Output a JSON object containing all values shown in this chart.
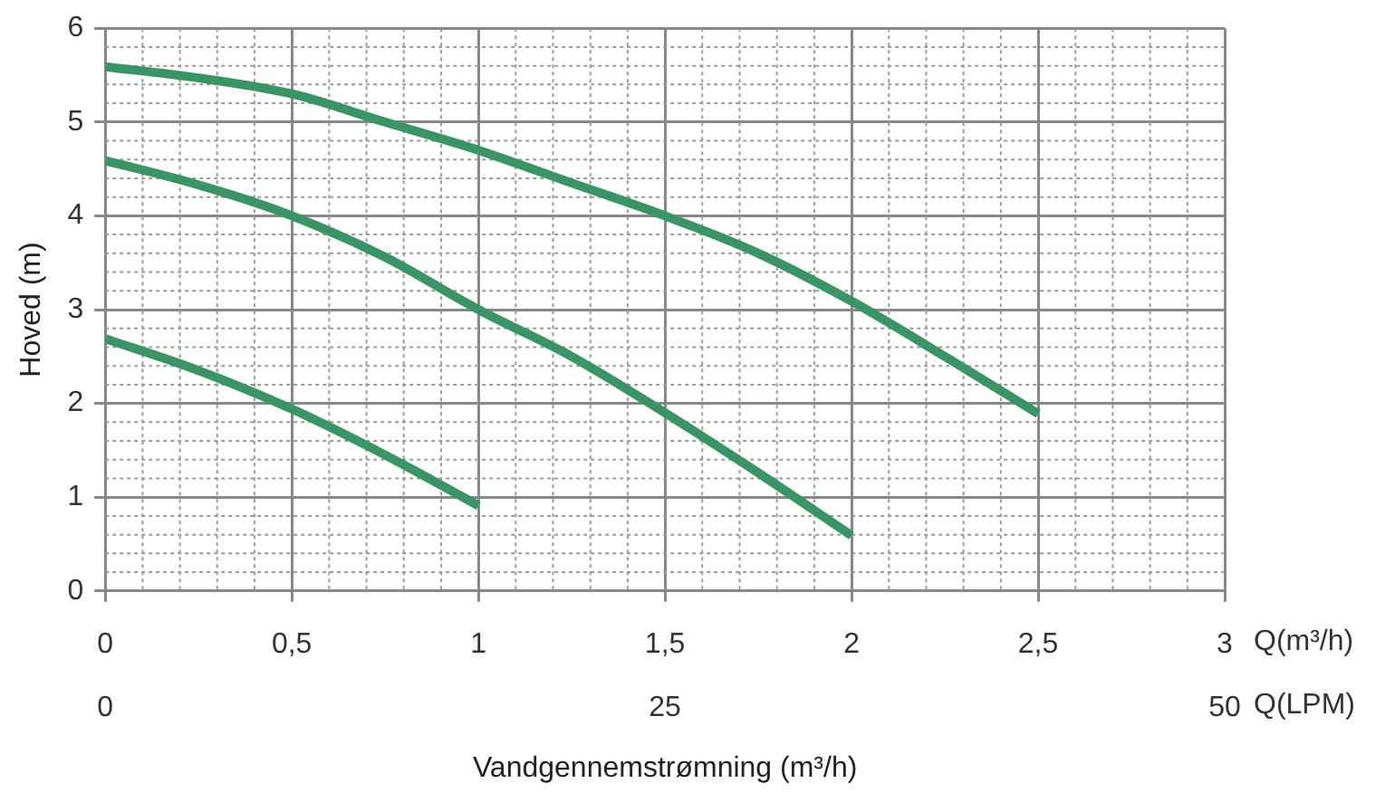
{
  "chart_data": {
    "type": "line",
    "xlabel": "Vandgennemstrømning (m³/h)",
    "ylabel": "Hoved (m)",
    "annotations": [
      "Q(m³/h)",
      "Q(LPM)"
    ],
    "series": [
      {
        "color": "#3a9466",
        "x": [
          0,
          0.25,
          0.5,
          0.75,
          1,
          1.25,
          1.5,
          1.75,
          2,
          2.25,
          2.5
        ],
        "values": [
          5.59,
          5.47,
          5.3,
          5.0,
          4.7,
          4.35,
          4.0,
          3.6,
          3.09,
          2.5,
          1.89
        ]
      },
      {
        "color": "#3a9466",
        "x": [
          0,
          0.25,
          0.5,
          0.75,
          1,
          1.25,
          1.5,
          1.75,
          2
        ],
        "values": [
          4.59,
          4.33,
          4.0,
          3.56,
          3.0,
          2.5,
          1.9,
          1.26,
          0.59
        ]
      },
      {
        "color": "#3a9466",
        "x": [
          0,
          0.25,
          0.5,
          0.75,
          1
        ],
        "values": [
          2.69,
          2.35,
          1.94,
          1.45,
          0.91
        ]
      }
    ],
    "xlim": [
      0,
      3
    ],
    "xticks": [
      0,
      {
        "value": 0.5,
        "label": "0,5"
      },
      1,
      {
        "value": 1.5,
        "label": "1,5"
      },
      2,
      {
        "value": 2.5,
        "label": "2,5"
      },
      3
    ],
    "x2lim": [
      0,
      50
    ],
    "x2ticks": [
      0,
      25,
      50
    ],
    "ylim": [
      0,
      6
    ],
    "yticks": [
      0,
      1,
      2,
      3,
      4,
      5,
      6
    ],
    "grid": true,
    "legend": false,
    "marker": "none",
    "line_style": "solid"
  }
}
